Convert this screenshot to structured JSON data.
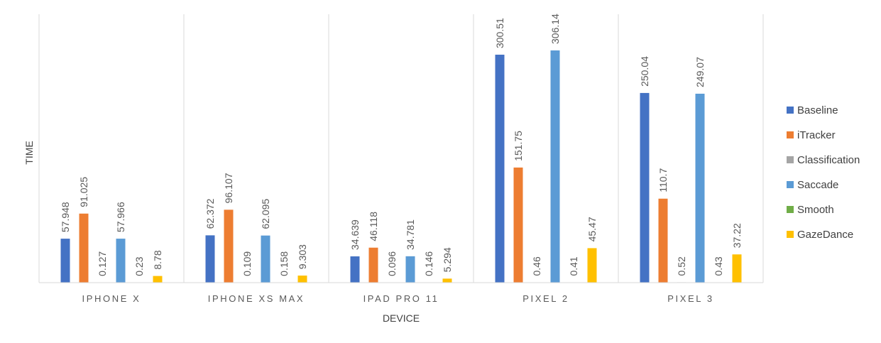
{
  "chart_data": {
    "type": "bar",
    "xlabel": "DEVICE",
    "ylabel": "TIME",
    "categories": [
      "IPHONE X",
      "IPHONE XS MAX",
      "IPAD PRO 11",
      "PIXEL 2",
      "PIXEL 3"
    ],
    "series": [
      {
        "name": "Baseline",
        "color": "#4472C4",
        "values": [
          57.948,
          62.372,
          34.639,
          300.51,
          250.04
        ],
        "labels": [
          "57.948",
          "62.372",
          "34.639",
          "300.51",
          "250.04"
        ]
      },
      {
        "name": "iTracker",
        "color": "#ED7D31",
        "values": [
          91.025,
          96.107,
          46.118,
          151.75,
          110.7
        ],
        "labels": [
          "91.025",
          "96.107",
          "46.118",
          "151.75",
          "110.7"
        ]
      },
      {
        "name": "Classification",
        "color": "#A5A5A5",
        "values": [
          0.127,
          0.109,
          0.096,
          0.46,
          0.52
        ],
        "labels": [
          "0.127",
          "0.109",
          "0.096",
          "0.46",
          "0.52"
        ]
      },
      {
        "name": "Saccade",
        "color": "#5B9BD5",
        "values": [
          57.966,
          62.095,
          34.781,
          306.14,
          249.07
        ],
        "labels": [
          "57.966",
          "62.095",
          "34.781",
          "306.14",
          "249.07"
        ]
      },
      {
        "name": "Smooth",
        "color": "#70AD47",
        "values": [
          0.23,
          0.158,
          0.146,
          0.41,
          0.43
        ],
        "labels": [
          "0.23",
          "0.158",
          "0.146",
          "0.41",
          "0.43"
        ]
      },
      {
        "name": "GazeDance",
        "color": "#FFC000",
        "values": [
          8.78,
          9.303,
          5.294,
          45.47,
          37.22
        ],
        "labels": [
          "8.78",
          "9.303",
          "5.294",
          "45.47",
          "37.22"
        ]
      }
    ],
    "ylim": [
      0,
      306.14
    ],
    "grid": "vertical-category-separators",
    "legend_position": "right"
  }
}
